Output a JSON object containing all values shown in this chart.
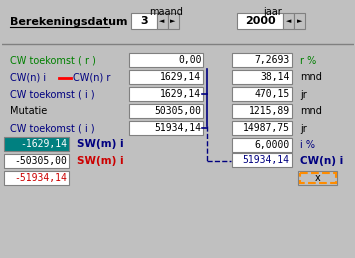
{
  "bg_color": "#c0c0c0",
  "header_text": "Berekeningsdatum",
  "maand_label": "maand",
  "jaar_label": "jaar",
  "maand_value": "3",
  "jaar_value": "2000",
  "rows": [
    {
      "label": "CW toekomst ( r )",
      "val1": "0,00",
      "val2": "7,2693",
      "unit": "r %",
      "label_color": "#008000"
    },
    {
      "label": "CW(n) i - CW(n) r",
      "val1": "1629,14",
      "val2": "38,14",
      "unit": "mnd",
      "label_color": "#000080"
    },
    {
      "label": "CW toekomst ( i )",
      "val1": "1629,14",
      "val2": "470,15",
      "unit": "jr",
      "label_color": "#000080"
    },
    {
      "label": "Mutatie",
      "val1": "50305,00",
      "val2": "1215,89",
      "unit": "mnd",
      "label_color": "#000000"
    },
    {
      "label": "CW toekomst ( i )",
      "val1": "51934,14",
      "val2": "14987,75",
      "unit": "jr",
      "label_color": "#000080"
    }
  ],
  "i_pct_value": "6,0000",
  "i_pct_unit": "i %",
  "sw_rows": [
    {
      "value": "-1629,14",
      "label": "SW(m) i",
      "bg": "#008080",
      "fg": "#ffffff",
      "label_color": "#000080"
    },
    {
      "value": "-50305,00",
      "label": "SW(m) i",
      "bg": "#ffffff",
      "fg": "#000000",
      "label_color": "#cc0000"
    },
    {
      "value": "-51934,14",
      "label": "",
      "bg": "#ffffff",
      "fg": "#cc0000",
      "label_color": "#000000"
    }
  ],
  "cw_n_value": "51934,14",
  "cw_n_label": "CW(n) i"
}
